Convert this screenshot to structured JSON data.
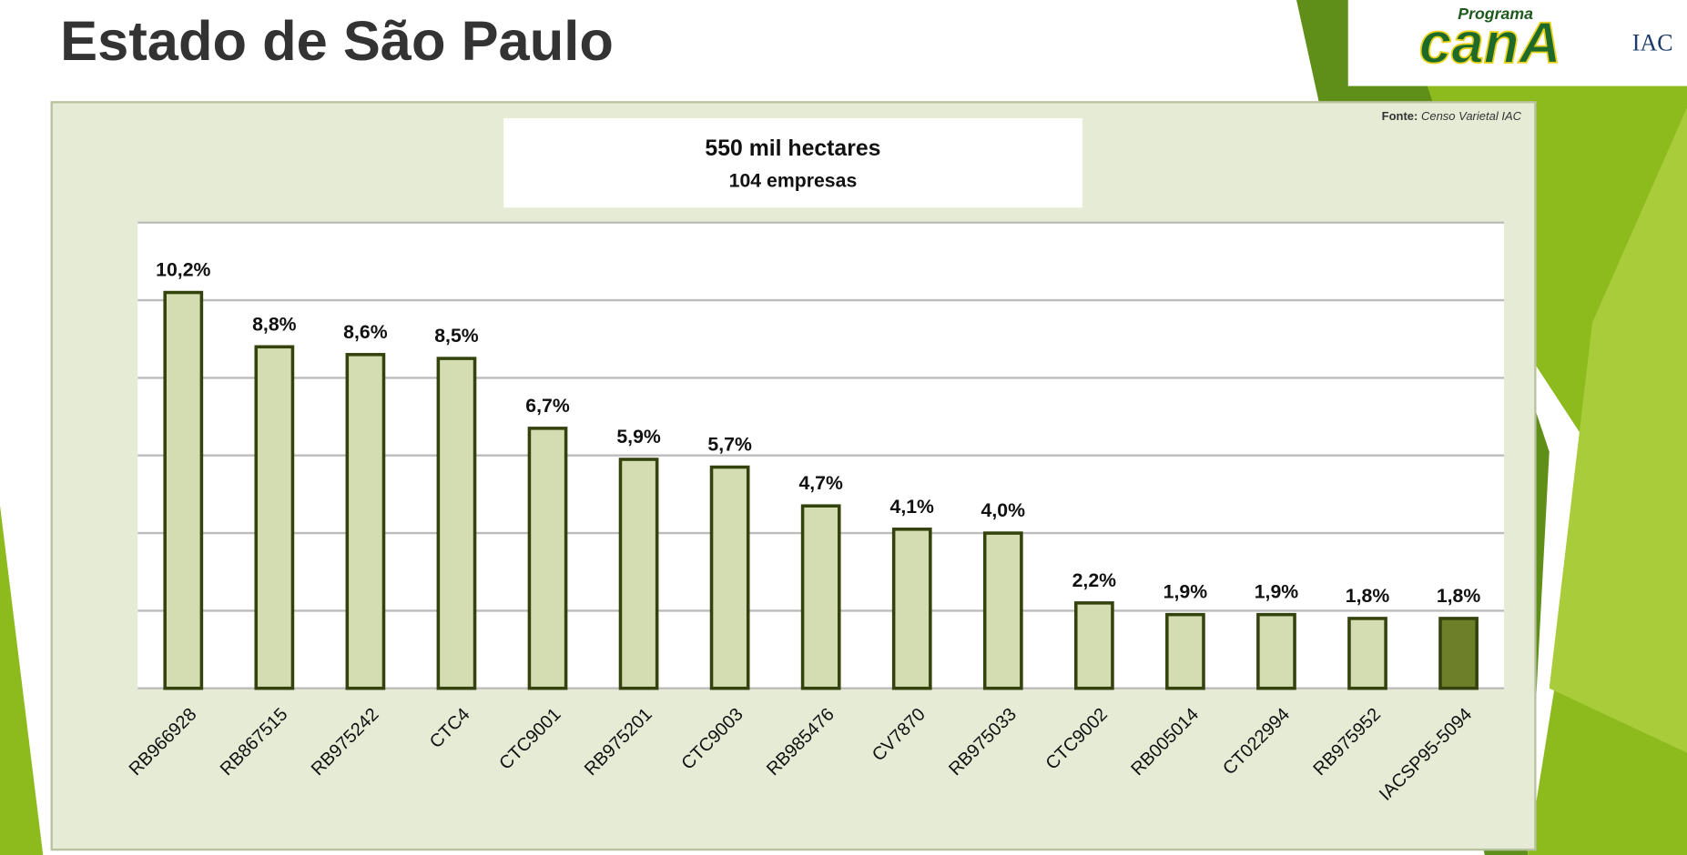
{
  "header": {
    "title": "Estado de São Paulo",
    "logo": {
      "top": "Programa",
      "main": "canA",
      "side": "IAC"
    }
  },
  "chart_data": {
    "type": "bar",
    "title": "550 mil hectares",
    "subtitle": "104 empresas",
    "source_label": "Fonte:",
    "source": "Censo Varietal IAC",
    "categories": [
      "RB966928",
      "RB867515",
      "RB975242",
      "CTC4",
      "CTC9001",
      "RB975201",
      "CTC9003",
      "RB985476",
      "CV7870",
      "RB975033",
      "CTC9002",
      "RB005014",
      "CT022994",
      "RB975952",
      "IACSP95-5094"
    ],
    "values": [
      10.2,
      8.8,
      8.6,
      8.5,
      6.7,
      5.9,
      5.7,
      4.7,
      4.1,
      4.0,
      2.2,
      1.9,
      1.9,
      1.8,
      1.8
    ],
    "value_labels": [
      "10,2%",
      "8,8%",
      "8,6%",
      "8,5%",
      "6,7%",
      "5,9%",
      "5,7%",
      "4,7%",
      "4,1%",
      "4,0%",
      "2,2%",
      "1,9%",
      "1,9%",
      "1,8%",
      "1,8%"
    ],
    "colors": [
      "#d4ddb2",
      "#d4ddb2",
      "#d4ddb2",
      "#d4ddb2",
      "#d4ddb2",
      "#d4ddb2",
      "#d4ddb2",
      "#d4ddb2",
      "#d4ddb2",
      "#d4ddb2",
      "#d4ddb2",
      "#d4ddb2",
      "#d4ddb2",
      "#d4ddb2",
      "#6e7f2a"
    ],
    "ylim": [
      0,
      12
    ],
    "yticks": [
      0,
      2,
      4,
      6,
      8,
      10,
      12
    ],
    "grid": true
  }
}
